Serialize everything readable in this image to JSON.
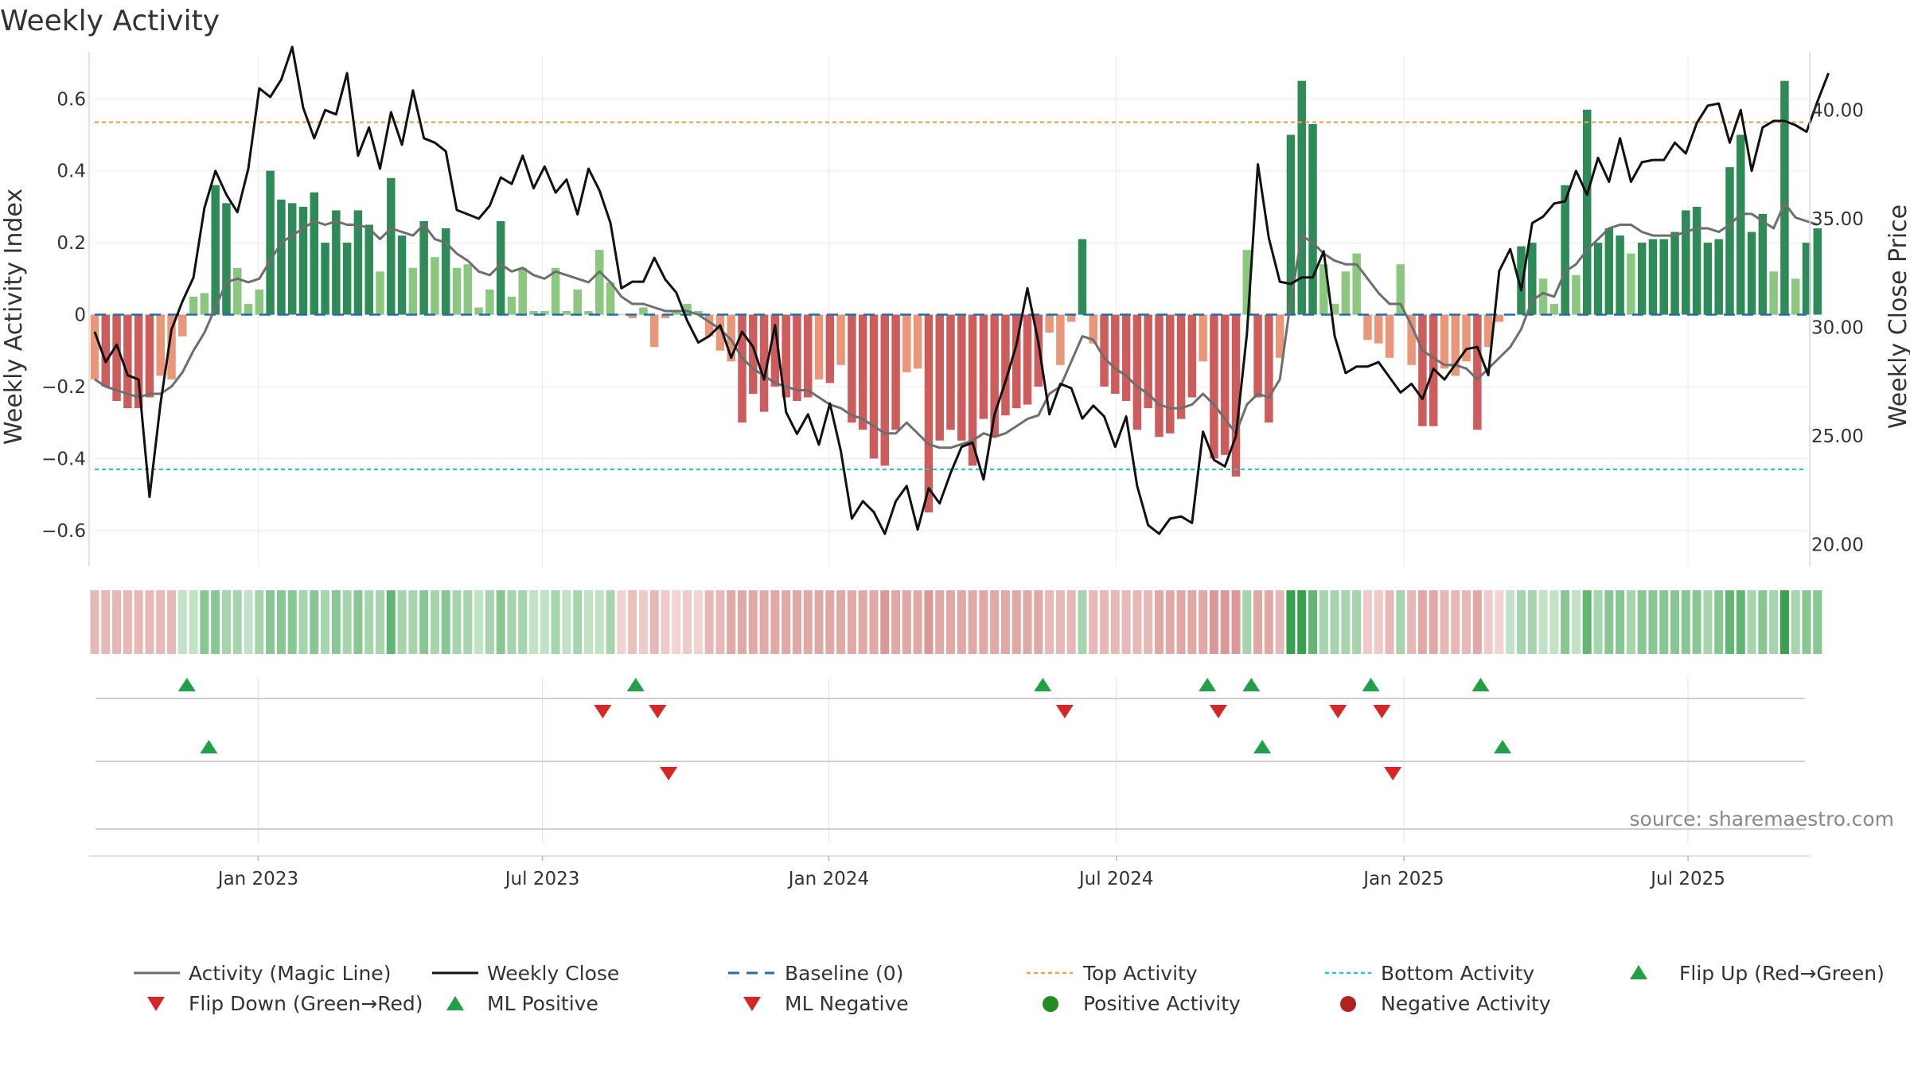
{
  "chart_data": {
    "type": "bar",
    "title": "Weekly Activity",
    "source": "source: sharemaestro.com",
    "ylabel_left": "Weekly Activity Index",
    "ylabel_right": "Weekly Close Price",
    "ylim_left": [
      -0.7,
      0.72
    ],
    "ylim_right": [
      19.0,
      42.5
    ],
    "yticks_left": [
      -0.6,
      -0.4,
      -0.2,
      0,
      0.2,
      0.4,
      0.6
    ],
    "yticks_left_labels": [
      "−0.6",
      "−0.4",
      "−0.2",
      "0",
      "0.2",
      "0.4",
      "0.6"
    ],
    "yticks_right": [
      20,
      25,
      30,
      35,
      40
    ],
    "yticks_right_labels": [
      "20.00",
      "25.00",
      "30.00",
      "35.00",
      "40.00"
    ],
    "xtick_labels": [
      "Jan 2023",
      "Jul 2023",
      "Jan 2024",
      "Jul 2024",
      "Jan 2025",
      "Jul 2025"
    ],
    "xtick_weeks": [
      14.9,
      40.8,
      66.9,
      93.1,
      119.3,
      145.2
    ],
    "week_count": 157,
    "top_activity": 0.535,
    "bottom_activity": -0.43,
    "baseline": 0,
    "colors": {
      "pos_strong": "#2e8b57",
      "pos_light": "#8cc77f",
      "neg_strong": "#cd5c5c",
      "neg_light": "#e9967a",
      "magic_line": "#6e6e6e",
      "close_line": "#111111",
      "baseline": "#1f6fa8",
      "top": "#f0a050",
      "bottom": "#22c5d5",
      "up_marker": "#22a046",
      "down_marker": "#d62728",
      "pos_dot": "#228b22",
      "neg_dot": "#b22222"
    },
    "activity": [
      -0.18,
      -0.2,
      -0.24,
      -0.26,
      -0.26,
      -0.23,
      -0.17,
      -0.18,
      -0.06,
      0.05,
      0.06,
      0.36,
      0.31,
      0.13,
      0.03,
      0.07,
      0.4,
      0.32,
      0.31,
      0.3,
      0.34,
      0.2,
      0.29,
      0.2,
      0.29,
      0.25,
      0.12,
      0.38,
      0.22,
      0.13,
      0.26,
      0.16,
      0.24,
      0.13,
      0.14,
      0.02,
      0.07,
      0.26,
      0.05,
      0.13,
      0.01,
      0.01,
      0.13,
      0.01,
      0.07,
      0.01,
      0.18,
      0.09,
      0.0,
      -0.01,
      0.02,
      -0.09,
      -0.01,
      0.01,
      0.03,
      0.01,
      -0.06,
      -0.1,
      -0.13,
      -0.3,
      -0.22,
      -0.27,
      -0.2,
      -0.23,
      -0.24,
      -0.23,
      -0.18,
      -0.19,
      -0.14,
      -0.3,
      -0.32,
      -0.4,
      -0.42,
      -0.32,
      -0.16,
      -0.15,
      -0.55,
      -0.35,
      -0.32,
      -0.35,
      -0.42,
      -0.29,
      -0.34,
      -0.28,
      -0.26,
      -0.25,
      -0.2,
      -0.05,
      -0.14,
      -0.02,
      0.21,
      -0.08,
      -0.2,
      -0.22,
      -0.24,
      -0.32,
      -0.26,
      -0.34,
      -0.33,
      -0.29,
      -0.23,
      -0.13,
      -0.4,
      -0.39,
      -0.45,
      0.18,
      -0.23,
      -0.3,
      -0.12,
      0.5,
      0.65,
      0.53,
      0.14,
      0.03,
      0.12,
      0.17,
      -0.07,
      -0.08,
      -0.12,
      0.14,
      -0.14,
      -0.31,
      -0.31,
      -0.15,
      -0.17,
      -0.13,
      -0.32,
      -0.09,
      -0.02,
      0.0,
      0.19,
      0.2,
      0.1,
      0.03,
      0.36,
      0.11,
      0.57,
      0.2,
      0.24,
      0.22,
      0.17,
      0.2,
      0.21,
      0.21,
      0.23,
      0.29,
      0.3,
      0.2,
      0.21,
      0.41,
      0.5,
      0.23,
      0.28,
      0.12,
      0.65,
      0.1,
      0.2,
      0.24
    ],
    "magic_line": [
      -0.18,
      -0.2,
      -0.21,
      -0.22,
      -0.23,
      -0.22,
      -0.22,
      -0.2,
      -0.16,
      -0.1,
      -0.05,
      0.02,
      0.09,
      0.1,
      0.09,
      0.1,
      0.15,
      0.2,
      0.22,
      0.24,
      0.26,
      0.25,
      0.26,
      0.25,
      0.25,
      0.24,
      0.21,
      0.24,
      0.23,
      0.22,
      0.25,
      0.21,
      0.2,
      0.17,
      0.15,
      0.12,
      0.11,
      0.14,
      0.12,
      0.13,
      0.11,
      0.1,
      0.12,
      0.11,
      0.1,
      0.09,
      0.12,
      0.09,
      0.05,
      0.03,
      0.03,
      0.02,
      0.01,
      0.01,
      0.01,
      0.0,
      -0.02,
      -0.04,
      -0.07,
      -0.12,
      -0.15,
      -0.17,
      -0.19,
      -0.2,
      -0.21,
      -0.21,
      -0.23,
      -0.25,
      -0.26,
      -0.28,
      -0.29,
      -0.31,
      -0.33,
      -0.33,
      -0.3,
      -0.33,
      -0.36,
      -0.37,
      -0.37,
      -0.36,
      -0.35,
      -0.33,
      -0.34,
      -0.33,
      -0.31,
      -0.29,
      -0.28,
      -0.22,
      -0.2,
      -0.13,
      -0.06,
      -0.07,
      -0.12,
      -0.15,
      -0.17,
      -0.2,
      -0.22,
      -0.25,
      -0.26,
      -0.26,
      -0.25,
      -0.22,
      -0.25,
      -0.29,
      -0.33,
      -0.25,
      -0.22,
      -0.23,
      -0.18,
      0.04,
      0.22,
      0.2,
      0.17,
      0.15,
      0.14,
      0.14,
      0.1,
      0.06,
      0.03,
      0.03,
      -0.03,
      -0.1,
      -0.12,
      -0.14,
      -0.14,
      -0.15,
      -0.18,
      -0.15,
      -0.12,
      -0.09,
      -0.04,
      0.04,
      0.06,
      0.05,
      0.12,
      0.14,
      0.18,
      0.21,
      0.24,
      0.25,
      0.25,
      0.23,
      0.22,
      0.22,
      0.22,
      0.23,
      0.24,
      0.24,
      0.23,
      0.25,
      0.28,
      0.28,
      0.26,
      0.24,
      0.31,
      0.27,
      0.26,
      0.25
    ],
    "weekly_close": [
      29.8,
      28.4,
      29.2,
      27.8,
      27.6,
      22.2,
      26.5,
      29.9,
      31.2,
      32.3,
      35.5,
      37.2,
      36.1,
      35.3,
      37.3,
      41.0,
      40.6,
      41.4,
      42.9,
      40.1,
      38.7,
      40.0,
      39.8,
      41.7,
      37.9,
      39.2,
      37.3,
      39.9,
      38.4,
      40.9,
      38.7,
      38.5,
      38.1,
      35.4,
      35.2,
      35.0,
      35.6,
      36.9,
      36.6,
      37.9,
      36.4,
      37.4,
      36.2,
      36.8,
      35.2,
      37.3,
      36.3,
      34.8,
      31.8,
      32.1,
      32.1,
      33.2,
      32.2,
      31.6,
      30.3,
      29.3,
      29.6,
      30.1,
      28.6,
      29.8,
      29.1,
      27.6,
      30.1,
      26.1,
      25.1,
      26.0,
      24.6,
      26.5,
      24.3,
      21.2,
      22.0,
      21.5,
      20.5,
      22.0,
      22.7,
      20.7,
      22.6,
      21.9,
      23.3,
      24.5,
      24.7,
      23.0,
      26.0,
      27.5,
      29.2,
      31.8,
      29.3,
      26.0,
      27.4,
      27.2,
      25.8,
      26.4,
      25.9,
      24.5,
      25.9,
      22.7,
      20.9,
      20.5,
      21.2,
      21.3,
      21.0,
      25.2,
      23.9,
      23.6,
      25.0,
      29.7,
      37.5,
      34.1,
      32.1,
      32.0,
      32.3,
      32.3,
      33.5,
      29.6,
      27.9,
      28.2,
      28.2,
      28.4,
      27.7,
      27.0,
      27.4,
      26.7,
      28.1,
      27.6,
      28.3,
      29.0,
      29.1,
      27.8,
      32.6,
      33.6,
      31.7,
      34.8,
      35.1,
      35.7,
      35.8,
      37.2,
      36.1,
      37.8,
      36.7,
      38.7,
      36.7,
      37.6,
      37.7,
      37.7,
      38.5,
      38.0,
      39.4,
      40.2,
      40.3,
      38.5,
      40.0,
      37.2,
      39.2,
      39.5,
      39.5,
      39.3,
      39.0,
      40.4,
      41.7
    ],
    "ml_strip": [
      -0.22,
      -0.22,
      -0.22,
      -0.22,
      -0.22,
      -0.22,
      -0.22,
      -0.22,
      0.12,
      0.12,
      0.32,
      0.32,
      0.22,
      0.22,
      0.12,
      0.22,
      0.32,
      0.32,
      0.32,
      0.22,
      0.32,
      0.22,
      0.32,
      0.22,
      0.32,
      0.22,
      0.22,
      0.45,
      0.22,
      0.22,
      0.32,
      0.22,
      0.32,
      0.22,
      0.22,
      0.12,
      0.22,
      0.32,
      0.22,
      0.22,
      0.12,
      0.12,
      0.22,
      0.12,
      0.22,
      0.12,
      0.12,
      0.22,
      -0.08,
      -0.18,
      -0.12,
      -0.22,
      -0.12,
      -0.08,
      -0.12,
      -0.08,
      -0.22,
      -0.22,
      -0.3,
      -0.3,
      -0.3,
      -0.3,
      -0.3,
      -0.3,
      -0.3,
      -0.3,
      -0.3,
      -0.3,
      -0.3,
      -0.3,
      -0.3,
      -0.3,
      -0.38,
      -0.3,
      -0.3,
      -0.3,
      -0.38,
      -0.3,
      -0.3,
      -0.3,
      -0.3,
      -0.3,
      -0.3,
      -0.3,
      -0.3,
      -0.3,
      -0.3,
      -0.22,
      -0.22,
      -0.22,
      0.22,
      -0.22,
      -0.22,
      -0.22,
      -0.22,
      -0.22,
      -0.22,
      -0.3,
      -0.3,
      -0.3,
      -0.3,
      -0.3,
      -0.38,
      -0.38,
      -0.38,
      0.22,
      -0.3,
      -0.3,
      -0.22,
      0.6,
      0.6,
      0.45,
      0.22,
      0.22,
      0.22,
      0.22,
      -0.12,
      -0.12,
      -0.22,
      0.22,
      -0.22,
      -0.3,
      -0.3,
      -0.22,
      -0.22,
      -0.22,
      -0.3,
      -0.12,
      -0.08,
      0.12,
      0.22,
      0.22,
      0.12,
      0.12,
      0.32,
      0.12,
      0.45,
      0.22,
      0.32,
      0.32,
      0.22,
      0.32,
      0.32,
      0.32,
      0.32,
      0.32,
      0.32,
      0.22,
      0.32,
      0.45,
      0.45,
      0.22,
      0.32,
      0.22,
      0.6,
      0.22,
      0.32,
      0.32
    ],
    "flip_up_weeks": [
      8.4,
      49.3,
      86.4,
      101.4,
      105.4,
      116.3,
      126.3
    ],
    "flip_down_weeks": [
      46.3,
      51.3,
      88.4,
      102.4,
      113.3,
      117.3
    ],
    "ml_positive_weeks": [
      10.4,
      106.4,
      128.3
    ],
    "ml_negative_weeks": [
      52.3,
      118.3
    ],
    "legend": {
      "magic_line": "Activity (Magic Line)",
      "weekly_close": "Weekly Close",
      "baseline": "Baseline (0)",
      "top": "Top Activity",
      "bottom": "Bottom Activity",
      "flip_up": "Flip Up (Red→Green)",
      "flip_down": "Flip Down (Green→Red)",
      "ml_positive": "ML Positive",
      "ml_negative": "ML Negative",
      "positive_activity": "Positive Activity",
      "negative_activity": "Negative Activity"
    }
  }
}
